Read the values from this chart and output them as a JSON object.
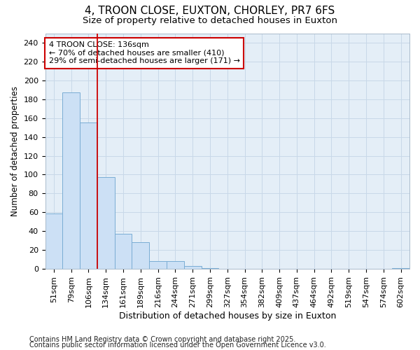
{
  "title1": "4, TROON CLOSE, EUXTON, CHORLEY, PR7 6FS",
  "title2": "Size of property relative to detached houses in Euxton",
  "xlabel": "Distribution of detached houses by size in Euxton",
  "ylabel": "Number of detached properties",
  "categories": [
    "51sqm",
    "79sqm",
    "106sqm",
    "134sqm",
    "161sqm",
    "189sqm",
    "216sqm",
    "244sqm",
    "271sqm",
    "299sqm",
    "327sqm",
    "354sqm",
    "382sqm",
    "409sqm",
    "437sqm",
    "464sqm",
    "492sqm",
    "519sqm",
    "547sqm",
    "574sqm",
    "602sqm"
  ],
  "values": [
    59,
    187,
    155,
    97,
    37,
    28,
    8,
    8,
    3,
    1,
    0,
    0,
    0,
    0,
    0,
    0,
    0,
    0,
    0,
    0,
    1
  ],
  "bar_color": "#cce0f5",
  "bar_edge_color": "#7aadd4",
  "vline_index": 3,
  "vline_color": "#cc0000",
  "annotation_text": "4 TROON CLOSE: 136sqm\n← 70% of detached houses are smaller (410)\n29% of semi-detached houses are larger (171) →",
  "annotation_box_edgecolor": "#cc0000",
  "annotation_box_facecolor": "#ffffff",
  "annotation_text_color": "#000000",
  "ylim": [
    0,
    250
  ],
  "yticks": [
    0,
    20,
    40,
    60,
    80,
    100,
    120,
    140,
    160,
    180,
    200,
    220,
    240
  ],
  "grid_color": "#c8d8e8",
  "plot_bg_color": "#e4eef7",
  "fig_bg_color": "#ffffff",
  "footer1": "Contains HM Land Registry data © Crown copyright and database right 2025.",
  "footer2": "Contains public sector information licensed under the Open Government Licence v3.0.",
  "title1_fontsize": 11,
  "title2_fontsize": 9.5,
  "xlabel_fontsize": 9,
  "ylabel_fontsize": 8.5,
  "tick_fontsize": 8,
  "annot_fontsize": 8,
  "footer_fontsize": 7
}
